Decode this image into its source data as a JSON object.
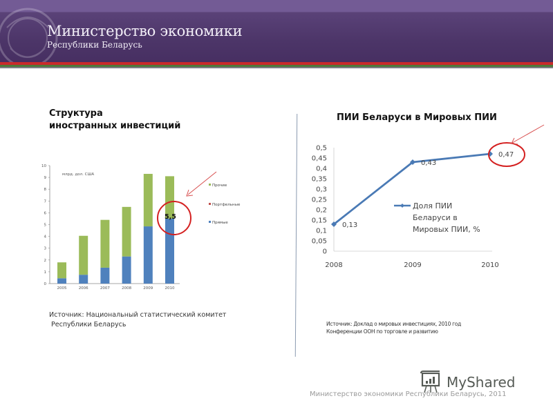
{
  "header": {
    "title": "Министерство экономики",
    "subtitle": "Республики Беларусь",
    "colors": {
      "purple_top": "#735b95",
      "purple_main": "#4c3568",
      "stripe_red": "#c92b2b",
      "stripe_green": "#4f7a3a"
    }
  },
  "left_panel": {
    "title_line1": "Структура",
    "title_line2": "иностранных инвестиций",
    "unit_label": "млрд. дол. США",
    "highlight_label": "5,5",
    "source": "Источник: Национальный статистический комитет\n Республики Беларусь"
  },
  "right_panel": {
    "title": "ПИИ Беларуси в Мировых ПИИ",
    "legend_line1": "Доля ПИИ",
    "legend_line2": "Беларуси в",
    "legend_line3": "Мировых ПИИ, %",
    "source_line1": "Источник: Доклад о мировых инвестициях, 2010 год",
    "source_line2": "Конференции ООН по торговле и развитию"
  },
  "footer": {
    "text": "Министерство экономики Республики Беларусь, 2011",
    "watermark": "MyShared"
  },
  "chart_data": [
    {
      "type": "bar",
      "stacked": true,
      "title": "Структура иностранных инвестиций",
      "ylabel": "млрд. дол. США",
      "xlabel": "",
      "categories": [
        "2005",
        "2006",
        "2007",
        "2008",
        "2009",
        "2010"
      ],
      "series": [
        {
          "name": "Прямые",
          "color": "#4f81bd",
          "values": [
            0.45,
            0.75,
            1.35,
            2.3,
            4.85,
            5.5
          ]
        },
        {
          "name": "Портфельные",
          "color": "#c0504d",
          "values": [
            0,
            0,
            0,
            0,
            0,
            0
          ]
        },
        {
          "name": "Прочие",
          "color": "#9bbb59",
          "values": [
            1.35,
            3.3,
            4.05,
            4.2,
            4.45,
            3.6
          ]
        }
      ],
      "totals": [
        1.8,
        4.05,
        5.4,
        6.5,
        9.3,
        9.1
      ],
      "yticks": [
        "0",
        "1",
        "2",
        "3",
        "4",
        "5",
        "6",
        "7",
        "8",
        "9",
        "10"
      ],
      "ylim": [
        0,
        10
      ],
      "legend": [
        "Прочие",
        "Портфельные",
        "Прямые"
      ],
      "legend_position": "right",
      "annotations": [
        {
          "category": "2010",
          "text": "5,5",
          "circled": true,
          "arrow": true
        }
      ],
      "grid": false
    },
    {
      "type": "line",
      "title": "ПИИ Беларуси в Мировых ПИИ",
      "x": [
        "2008",
        "2009",
        "2010"
      ],
      "series": [
        {
          "name": "Доля ПИИ Беларуси в Мировых ПИИ, %",
          "color": "#4a7ab5",
          "values": [
            0.13,
            0.43,
            0.47
          ]
        }
      ],
      "data_labels": [
        "0,13",
        "0,43",
        "0,47"
      ],
      "yticks": [
        "0",
        "0,05",
        "0,1",
        "0,15",
        "0,2",
        "0,25",
        "0,3",
        "0,35",
        "0,4",
        "0,45",
        "0,5"
      ],
      "ylim": [
        0,
        0.5
      ],
      "legend_position": "inside-right",
      "annotations": [
        {
          "x": "2010",
          "text": "0,47",
          "circled": true,
          "arrow": true
        }
      ],
      "grid": false
    }
  ]
}
